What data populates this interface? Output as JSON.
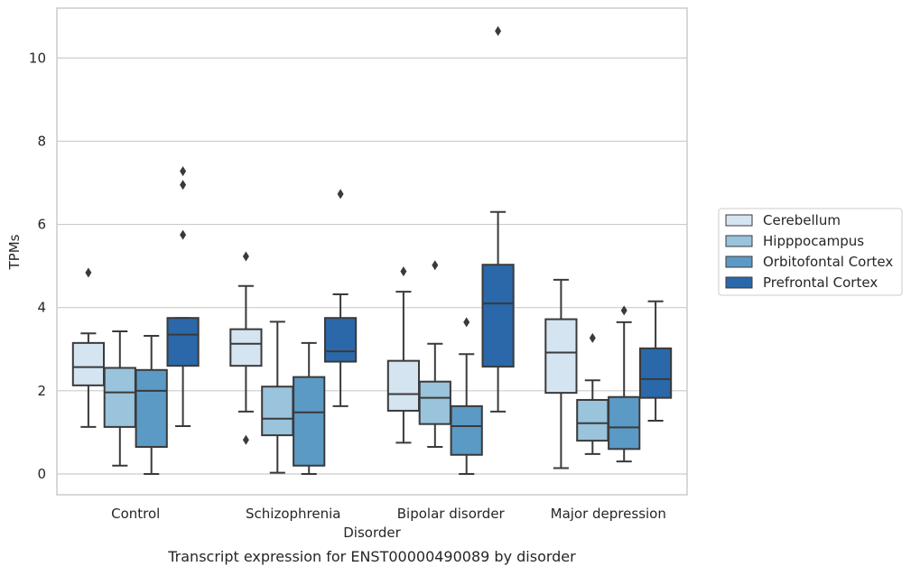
{
  "chart_data": {
    "type": "box",
    "title": "",
    "caption": "Transcript expression for ENST00000490089 by disorder",
    "xlabel": "Disorder",
    "ylabel": "TPMs",
    "ylim": [
      -0.5,
      11.2
    ],
    "yticks": [
      0,
      2,
      4,
      6,
      8,
      10
    ],
    "grid": "horizontal",
    "legend_position": "right",
    "categories": [
      "Control",
      "Schizophrenia",
      "Bipolar disorder",
      "Major depression"
    ],
    "series": [
      {
        "name": "Cerebellum",
        "color": "#d5e4f1",
        "boxes": [
          {
            "whislo": 1.13,
            "q1": 2.13,
            "med": 2.57,
            "q3": 3.15,
            "whishi": 3.38,
            "fliers": [
              4.84
            ]
          },
          {
            "whislo": 1.5,
            "q1": 2.6,
            "med": 3.13,
            "q3": 3.48,
            "whishi": 4.52,
            "fliers": [
              5.23,
              0.82
            ]
          },
          {
            "whislo": 0.75,
            "q1": 1.52,
            "med": 1.92,
            "q3": 2.72,
            "whishi": 4.38,
            "fliers": [
              4.87
            ]
          },
          {
            "whislo": 0.14,
            "q1": 1.95,
            "med": 2.92,
            "q3": 3.72,
            "whishi": 4.67,
            "fliers": []
          }
        ]
      },
      {
        "name": "Hipppocampus",
        "color": "#9ac3dc",
        "boxes": [
          {
            "whislo": 0.2,
            "q1": 1.13,
            "med": 1.96,
            "q3": 2.55,
            "whishi": 3.43,
            "fliers": []
          },
          {
            "whislo": 0.03,
            "q1": 0.93,
            "med": 1.33,
            "q3": 2.1,
            "whishi": 3.66,
            "fliers": []
          },
          {
            "whislo": 0.65,
            "q1": 1.2,
            "med": 1.83,
            "q3": 2.22,
            "whishi": 3.13,
            "fliers": [
              5.02
            ]
          },
          {
            "whislo": 0.48,
            "q1": 0.8,
            "med": 1.22,
            "q3": 1.78,
            "whishi": 2.25,
            "fliers": [
              3.27
            ]
          }
        ]
      },
      {
        "name": "Orbitofontal Cortex",
        "color": "#5b9ac4",
        "boxes": [
          {
            "whislo": 0.0,
            "q1": 0.65,
            "med": 2.0,
            "q3": 2.5,
            "whishi": 3.32,
            "fliers": []
          },
          {
            "whislo": 0.0,
            "q1": 0.2,
            "med": 1.48,
            "q3": 2.33,
            "whishi": 3.15,
            "fliers": []
          },
          {
            "whislo": 0.0,
            "q1": 0.46,
            "med": 1.15,
            "q3": 1.63,
            "whishi": 2.88,
            "fliers": [
              3.65
            ]
          },
          {
            "whislo": 0.3,
            "q1": 0.6,
            "med": 1.12,
            "q3": 1.85,
            "whishi": 3.65,
            "fliers": [
              3.93
            ]
          }
        ]
      },
      {
        "name": "Prefrontal Cortex",
        "color": "#2a68a9",
        "boxes": [
          {
            "whislo": 1.15,
            "q1": 2.6,
            "med": 3.35,
            "q3": 3.75,
            "whishi": 3.75,
            "fliers": [
              5.75,
              6.95,
              7.28
            ]
          },
          {
            "whislo": 1.63,
            "q1": 2.7,
            "med": 2.95,
            "q3": 3.75,
            "whishi": 4.32,
            "fliers": [
              6.73
            ]
          },
          {
            "whislo": 1.5,
            "q1": 2.58,
            "med": 4.1,
            "q3": 5.03,
            "whishi": 6.3,
            "fliers": [
              10.65
            ]
          },
          {
            "whislo": 1.28,
            "q1": 1.83,
            "med": 2.28,
            "q3": 3.02,
            "whishi": 4.15,
            "fliers": []
          }
        ]
      }
    ]
  }
}
